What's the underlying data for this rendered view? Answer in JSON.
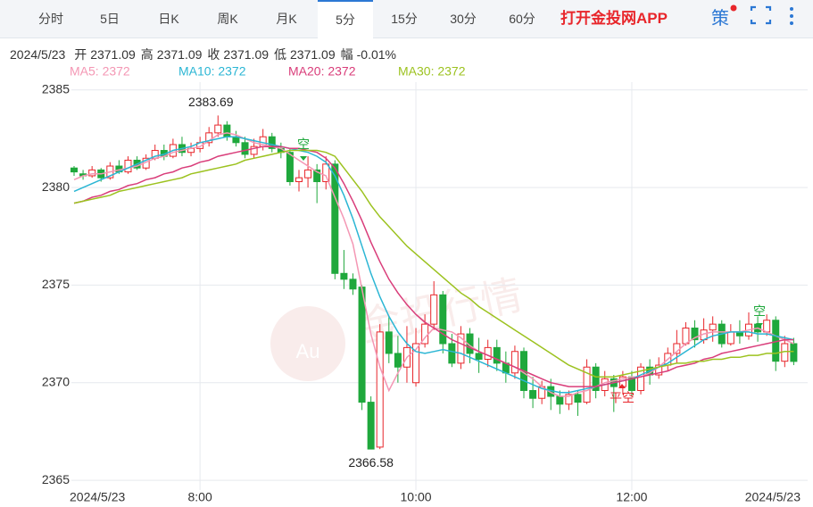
{
  "header": {
    "tabs": [
      "分时",
      "5日",
      "日K",
      "周K",
      "月K",
      "5分",
      "15分",
      "30分",
      "60分"
    ],
    "app_link": "打开金投网APP",
    "strategy": "策"
  },
  "info": {
    "date": "2024/5/23",
    "items": [
      {
        "label": "开",
        "value": "2371.09"
      },
      {
        "label": "高",
        "value": "2371.09"
      },
      {
        "label": "收",
        "value": "2371.09"
      },
      {
        "label": "低",
        "value": "2371.09"
      },
      {
        "label": "幅",
        "value": "-0.01%"
      }
    ]
  },
  "chart_data": {
    "type": "candlestick",
    "watermark": "金投行情",
    "watermark_logo": "Au",
    "categories": [
      "2024/5/23",
      null,
      null,
      null,
      null,
      null,
      null,
      null,
      null,
      null,
      null,
      null,
      null,
      null,
      "8:00",
      null,
      null,
      null,
      null,
      null,
      null,
      null,
      null,
      null,
      null,
      null,
      null,
      null,
      null,
      null,
      null,
      null,
      null,
      null,
      null,
      null,
      null,
      null,
      "10:00",
      null,
      null,
      null,
      null,
      null,
      null,
      null,
      null,
      null,
      null,
      null,
      null,
      null,
      null,
      null,
      null,
      null,
      null,
      null,
      null,
      null,
      null,
      null,
      "12:00",
      null,
      null,
      null,
      null,
      null,
      null,
      null,
      null,
      null,
      null,
      null,
      null,
      null,
      null,
      null,
      null,
      null,
      "2024/5/23"
    ],
    "open": [
      2381.0,
      2380.7,
      2380.6,
      2380.9,
      2380.5,
      2381.1,
      2380.8,
      2381.4,
      2381.0,
      2381.5,
      2381.9,
      2381.6,
      2382.2,
      2381.8,
      2382.0,
      2382.3,
      2382.8,
      2383.2,
      2382.6,
      2382.3,
      2381.7,
      2382.1,
      2382.6,
      2382.0,
      2381.8,
      2380.3,
      2380.5,
      2380.9,
      2380.3,
      2381.2,
      2375.6,
      2375.3,
      2374.9,
      2369.0,
      2366.7,
      2372.6,
      2371.5,
      2370.8,
      2370.0,
      2372.0,
      2373.0,
      2374.5,
      2372.0,
      2371.0,
      2372.5,
      2371.5,
      2371.2,
      2371.8,
      2371.0,
      2370.5,
      2371.6,
      2369.6,
      2369.2,
      2369.8,
      2369.3,
      2368.9,
      2369.4,
      2369.0,
      2370.8,
      2369.6,
      2370.2,
      2369.8,
      2370.3,
      2369.6,
      2370.8,
      2370.4,
      2370.9,
      2371.5,
      2372.0,
      2372.8,
      2372.2,
      2372.7,
      2373.0,
      2372.0,
      2372.6,
      2372.4,
      2373.0,
      2372.6,
      2373.2,
      2371.1,
      2372.0
    ],
    "high": [
      2381.1,
      2380.9,
      2381.1,
      2381.0,
      2381.3,
      2381.4,
      2381.6,
      2381.6,
      2381.7,
      2382.2,
      2382.2,
      2382.5,
      2382.6,
      2382.3,
      2382.6,
      2383.1,
      2383.69,
      2383.4,
      2382.9,
      2382.6,
      2382.5,
      2383.0,
      2382.8,
      2382.3,
      2382.0,
      2380.9,
      2381.6,
      2381.2,
      2381.6,
      2381.4,
      2376.8,
      2375.6,
      2375.0,
      2369.3,
      2373.0,
      2373.4,
      2372.4,
      2372.9,
      2372.8,
      2373.5,
      2375.2,
      2374.7,
      2372.5,
      2372.9,
      2372.8,
      2372.3,
      2372.2,
      2372.2,
      2371.6,
      2371.9,
      2371.8,
      2370.3,
      2370.1,
      2370.2,
      2369.6,
      2369.6,
      2369.6,
      2371.2,
      2371.0,
      2370.6,
      2370.4,
      2370.6,
      2370.6,
      2371.0,
      2371.2,
      2371.3,
      2371.8,
      2372.7,
      2373.1,
      2373.2,
      2373.3,
      2373.4,
      2373.2,
      2373.0,
      2373.2,
      2373.6,
      2373.4,
      2373.5,
      2373.4,
      2372.4,
      2372.3
    ],
    "low": [
      2380.6,
      2380.4,
      2380.5,
      2380.3,
      2380.4,
      2380.7,
      2380.7,
      2380.9,
      2380.9,
      2381.4,
      2381.4,
      2381.5,
      2381.6,
      2381.6,
      2381.8,
      2382.1,
      2382.6,
      2382.4,
      2382.1,
      2381.5,
      2381.5,
      2381.9,
      2381.8,
      2381.5,
      2380.1,
      2379.8,
      2380.0,
      2379.2,
      2379.9,
      2375.3,
      2374.8,
      2374.5,
      2368.6,
      2366.58,
      2366.6,
      2371.0,
      2370.0,
      2370.0,
      2369.8,
      2371.8,
      2372.7,
      2371.5,
      2370.8,
      2370.7,
      2371.0,
      2370.5,
      2370.8,
      2370.6,
      2370.0,
      2370.2,
      2369.2,
      2368.7,
      2368.9,
      2368.6,
      2368.4,
      2368.6,
      2368.3,
      2368.9,
      2369.2,
      2369.3,
      2368.5,
      2369.4,
      2369.3,
      2369.4,
      2369.9,
      2370.2,
      2370.6,
      2371.0,
      2371.9,
      2371.8,
      2372.0,
      2372.1,
      2371.8,
      2371.9,
      2372.0,
      2372.2,
      2372.1,
      2372.4,
      2370.6,
      2370.8,
      2370.9
    ],
    "close": [
      2380.8,
      2380.6,
      2380.9,
      2380.5,
      2381.1,
      2380.8,
      2381.4,
      2381.0,
      2381.5,
      2381.9,
      2381.6,
      2382.2,
      2381.8,
      2382.0,
      2382.3,
      2382.8,
      2383.2,
      2382.6,
      2382.3,
      2381.7,
      2382.1,
      2382.6,
      2382.0,
      2381.8,
      2380.3,
      2380.5,
      2380.9,
      2380.3,
      2381.2,
      2375.6,
      2375.3,
      2374.8,
      2369.0,
      2366.6,
      2372.6,
      2371.5,
      2370.8,
      2371.8,
      2372.0,
      2373.0,
      2374.5,
      2372.0,
      2371.0,
      2372.5,
      2371.5,
      2371.2,
      2371.8,
      2371.0,
      2370.5,
      2371.6,
      2369.6,
      2369.2,
      2369.8,
      2369.3,
      2368.9,
      2369.4,
      2369.0,
      2370.8,
      2369.6,
      2370.2,
      2369.8,
      2370.3,
      2369.6,
      2370.8,
      2370.4,
      2370.9,
      2371.5,
      2372.0,
      2372.8,
      2372.2,
      2372.7,
      2373.0,
      2372.0,
      2372.6,
      2372.4,
      2373.0,
      2372.6,
      2373.2,
      2371.1,
      2372.0,
      2371.09
    ],
    "up_color": "#e8262b",
    "down_color": "#1fa83c",
    "series": [
      {
        "name": "MA5: 2372",
        "color": "#f497b4",
        "values": [
          2380.4,
          2380.6,
          2380.7,
          2380.7,
          2380.8,
          2380.9,
          2381.0,
          2381.1,
          2381.3,
          2381.5,
          2381.6,
          2381.8,
          2381.9,
          2382.0,
          2382.1,
          2382.4,
          2382.7,
          2382.8,
          2382.7,
          2382.5,
          2382.3,
          2382.2,
          2382.1,
          2382.0,
          2381.7,
          2381.4,
          2381.1,
          2380.8,
          2380.6,
          2379.5,
          2378.4,
          2377.1,
          2374.8,
          2372.5,
          2370.8,
          2369.6,
          2370.5,
          2371.3,
          2371.7,
          2372.3,
          2372.8,
          2372.7,
          2372.6,
          2372.3,
          2371.9,
          2371.6,
          2371.4,
          2371.2,
          2371.0,
          2370.8,
          2370.5,
          2370.2,
          2369.8,
          2369.5,
          2369.3,
          2369.3,
          2369.5,
          2369.6,
          2369.8,
          2370.0,
          2370.1,
          2370.2,
          2370.3,
          2370.3,
          2370.5,
          2370.8,
          2371.2,
          2371.6,
          2372.0,
          2372.3,
          2372.5,
          2372.6,
          2372.6,
          2372.6,
          2372.6,
          2372.7,
          2372.8,
          2372.6,
          2372.4,
          2372.2,
          2372.0
        ]
      },
      {
        "name": "MA10: 2372",
        "color": "#2bb6d4",
        "values": [
          2379.8,
          2380.0,
          2380.2,
          2380.4,
          2380.6,
          2380.8,
          2381.0,
          2381.2,
          2381.4,
          2381.6,
          2381.7,
          2381.9,
          2382.0,
          2382.1,
          2382.3,
          2382.4,
          2382.5,
          2382.6,
          2382.6,
          2382.5,
          2382.4,
          2382.3,
          2382.2,
          2382.1,
          2382.0,
          2381.9,
          2381.8,
          2381.6,
          2381.3,
          2380.6,
          2379.6,
          2378.4,
          2377.0,
          2375.6,
          2374.4,
          2373.4,
          2372.6,
          2372.0,
          2371.6,
          2371.5,
          2371.6,
          2371.7,
          2371.6,
          2371.5,
          2371.3,
          2371.1,
          2370.9,
          2370.7,
          2370.5,
          2370.3,
          2370.1,
          2369.9,
          2369.7,
          2369.6,
          2369.5,
          2369.5,
          2369.6,
          2369.7,
          2369.8,
          2369.9,
          2370.0,
          2370.1,
          2370.2,
          2370.4,
          2370.6,
          2370.8,
          2371.0,
          2371.3,
          2371.6,
          2371.9,
          2372.2,
          2372.4,
          2372.5,
          2372.6,
          2372.6,
          2372.6,
          2372.5,
          2372.5,
          2372.4,
          2372.3,
          2372.2
        ]
      },
      {
        "name": "MA20: 2372",
        "color": "#d93d7a",
        "values": [
          2379.2,
          2379.3,
          2379.5,
          2379.6,
          2379.8,
          2379.9,
          2380.1,
          2380.2,
          2380.4,
          2380.5,
          2380.7,
          2380.8,
          2381.0,
          2381.1,
          2381.3,
          2381.4,
          2381.6,
          2381.7,
          2381.8,
          2381.9,
          2382.0,
          2382.1,
          2382.1,
          2382.1,
          2382.0,
          2382.0,
          2381.9,
          2381.8,
          2381.5,
          2381.0,
          2380.2,
          2379.3,
          2378.3,
          2377.2,
          2376.2,
          2375.3,
          2374.6,
          2374.0,
          2373.5,
          2373.1,
          2372.8,
          2372.5,
          2372.2,
          2372.0,
          2371.8,
          2371.6,
          2371.4,
          2371.2,
          2371.0,
          2370.8,
          2370.6,
          2370.4,
          2370.2,
          2370.0,
          2369.9,
          2369.8,
          2369.8,
          2369.8,
          2369.8,
          2369.9,
          2370.0,
          2370.1,
          2370.2,
          2370.3,
          2370.4,
          2370.5,
          2370.6,
          2370.8,
          2370.9,
          2371.0,
          2371.2,
          2371.3,
          2371.5,
          2371.6,
          2371.7,
          2371.8,
          2371.9,
          2372.0,
          2372.1,
          2372.2,
          2372.2
        ]
      },
      {
        "name": "MA30: 2372",
        "color": "#9cc21f",
        "values": [
          2379.2,
          2379.3,
          2379.4,
          2379.5,
          2379.6,
          2379.8,
          2379.9,
          2380.0,
          2380.1,
          2380.2,
          2380.3,
          2380.4,
          2380.5,
          2380.7,
          2380.8,
          2380.9,
          2381.0,
          2381.1,
          2381.2,
          2381.4,
          2381.5,
          2381.6,
          2381.7,
          2381.8,
          2381.9,
          2381.9,
          2381.9,
          2381.9,
          2381.8,
          2381.6,
          2381.0,
          2380.4,
          2379.8,
          2379.1,
          2378.5,
          2378.0,
          2377.5,
          2377.0,
          2376.6,
          2376.2,
          2375.8,
          2375.4,
          2375.0,
          2374.6,
          2374.3,
          2373.9,
          2373.6,
          2373.3,
          2373.0,
          2372.7,
          2372.4,
          2372.1,
          2371.8,
          2371.5,
          2371.2,
          2370.9,
          2370.7,
          2370.5,
          2370.3,
          2370.3,
          2370.3,
          2370.4,
          2370.5,
          2370.6,
          2370.7,
          2370.8,
          2370.9,
          2371.0,
          2371.0,
          2371.1,
          2371.1,
          2371.2,
          2371.2,
          2371.3,
          2371.3,
          2371.4,
          2371.4,
          2371.5,
          2371.5,
          2371.6,
          2371.6
        ]
      }
    ],
    "signals": [
      "空",
      "平空",
      "空"
    ],
    "ylim": [
      2364.5,
      2385.4
    ],
    "yticks": [
      2365,
      2370,
      2375,
      2380,
      2385
    ],
    "grid": true
  }
}
